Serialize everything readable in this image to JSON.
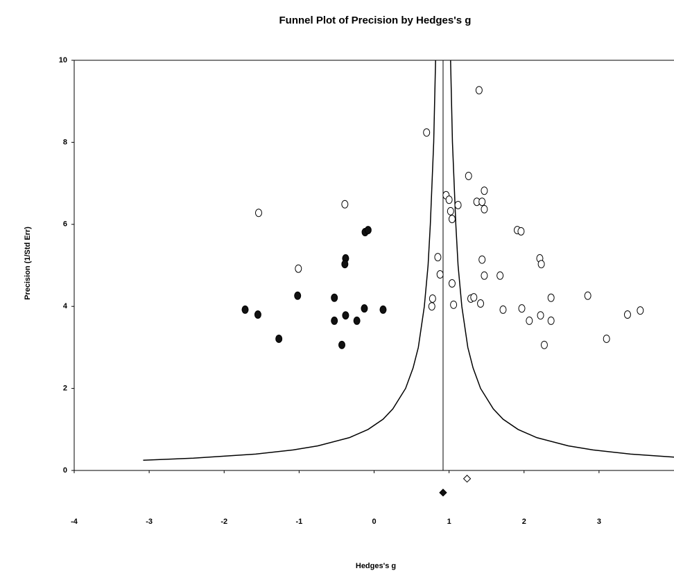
{
  "chart_data": {
    "type": "scatter",
    "title": "Funnel Plot of Precision by Hedges's g",
    "x_label": "Hedges's g",
    "y_label": "Precision (1/Std Err)",
    "xlim": [
      -4,
      4
    ],
    "ylim": [
      0,
      10
    ],
    "xticks": [
      -4,
      -3,
      -2,
      -1,
      0,
      1,
      2,
      3
    ],
    "yticks": [
      0,
      2,
      4,
      6,
      8,
      10
    ],
    "mean_x": 0.92,
    "series": [
      {
        "marker": "open-circle",
        "x": [
          -1.54,
          -1.01,
          -0.39,
          0.7,
          1.4,
          0.85,
          0.88,
          0.78,
          0.77,
          0.96,
          1.0,
          1.02,
          1.04,
          1.12,
          1.04,
          1.06,
          1.26,
          1.37,
          1.47,
          1.44,
          1.47,
          1.44,
          1.47,
          1.29,
          1.33,
          1.42,
          1.68,
          1.72,
          1.91,
          1.96,
          1.97,
          2.07,
          2.21,
          2.23,
          2.22,
          2.27,
          2.36,
          2.36,
          2.85,
          3.1,
          3.38,
          3.55
        ],
        "values": [
          6.28,
          4.92,
          6.49,
          8.24,
          9.27,
          5.2,
          4.78,
          4.19,
          4.0,
          6.71,
          6.6,
          6.32,
          6.13,
          6.47,
          4.56,
          4.04,
          7.18,
          6.55,
          6.82,
          6.55,
          6.37,
          5.14,
          4.75,
          4.19,
          4.22,
          4.07,
          4.75,
          3.92,
          5.86,
          5.83,
          3.95,
          3.65,
          5.17,
          5.03,
          3.78,
          3.06,
          4.21,
          3.65,
          4.26,
          3.21,
          3.8,
          3.9
        ]
      },
      {
        "marker": "filled-circle",
        "x": [
          -1.72,
          -1.55,
          -1.27,
          -1.02,
          -0.53,
          -0.53,
          -0.43,
          -0.38,
          -0.39,
          -0.38,
          -0.23,
          -0.13,
          -0.12,
          -0.08,
          0.12
        ],
        "values": [
          3.92,
          3.8,
          3.21,
          4.26,
          4.21,
          3.65,
          3.06,
          5.17,
          5.03,
          3.78,
          3.65,
          3.95,
          5.81,
          5.86,
          3.92
        ]
      },
      {
        "marker": "filled-diamond",
        "x": [
          0.92
        ],
        "values": [
          -0.54
        ]
      },
      {
        "marker": "open-diamond",
        "x": [
          1.24
        ],
        "values": [
          -0.2
        ]
      }
    ],
    "funnel_lines": [
      {
        "x": [
          -3.08,
          -2.41,
          -1.58,
          -1.08,
          -0.75,
          -0.33,
          -0.08,
          0.12,
          0.25,
          0.42,
          0.52,
          0.59,
          0.67,
          0.72,
          0.75,
          0.795,
          0.82
        ],
        "values": [
          0.25,
          0.3,
          0.4,
          0.5,
          0.6,
          0.8,
          1,
          1.25,
          1.5,
          2,
          2.5,
          3,
          4,
          5,
          6,
          8,
          10
        ]
      },
      {
        "x": [
          4.0,
          3.42,
          2.92,
          2.59,
          2.17,
          1.92,
          1.72,
          1.59,
          1.42,
          1.32,
          1.25,
          1.17,
          1.12,
          1.09,
          1.045,
          1.02
        ],
        "values": [
          0.325,
          0.4,
          0.5,
          0.6,
          0.8,
          1,
          1.25,
          1.5,
          2,
          2.5,
          3,
          4,
          5,
          6,
          8,
          10
        ]
      }
    ]
  }
}
